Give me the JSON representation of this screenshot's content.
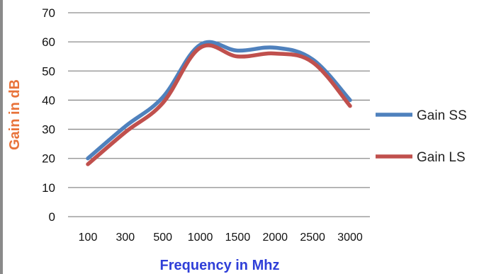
{
  "chart_data": {
    "type": "line",
    "title": "",
    "xlabel": "Frequency in Mhz",
    "ylabel": "Gain in dB",
    "categories": [
      "100",
      "300",
      "500",
      "1000",
      "1500",
      "2000",
      "2500",
      "3000"
    ],
    "ylim": [
      0,
      70
    ],
    "yticks": [
      0,
      10,
      20,
      30,
      40,
      50,
      60,
      70
    ],
    "grid": true,
    "legend_position": "right",
    "series": [
      {
        "name": "Gain SS",
        "color": "#4f81bd",
        "values": [
          20,
          31,
          41,
          59,
          57,
          58,
          54,
          40
        ]
      },
      {
        "name": "Gain LS",
        "color": "#c0504d",
        "values": [
          18,
          29,
          39,
          58,
          55,
          56,
          53,
          38
        ]
      }
    ]
  }
}
